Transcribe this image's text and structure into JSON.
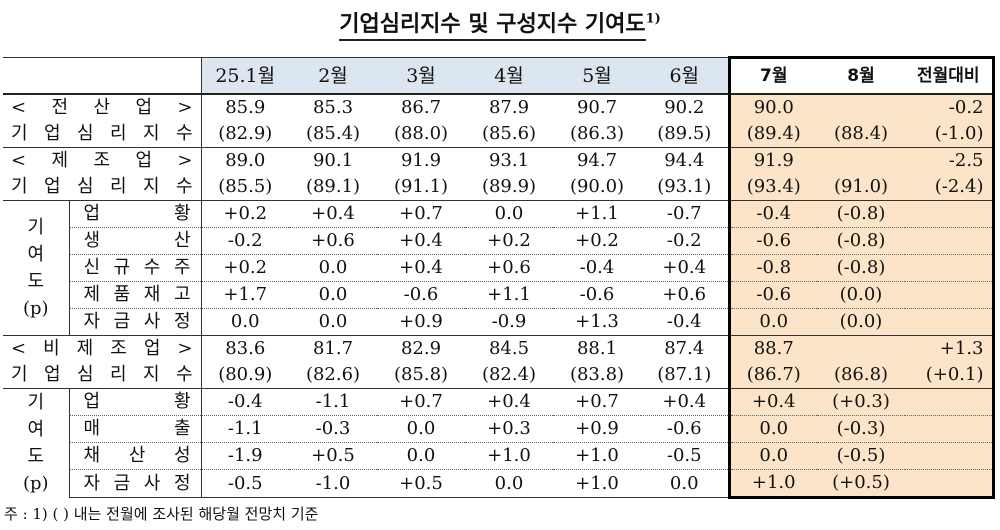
{
  "title": "기업심리지수 및 구성지수 기여도",
  "title_note": "1)",
  "table": {
    "header": [
      "25.1월",
      "2월",
      "3월",
      "4월",
      "5월",
      "6월",
      "7월",
      "8월",
      "전월대비"
    ],
    "sections": [
      {
        "label": "< 전 산 업 >",
        "sublabel": "기 업 심 리 지 수",
        "values": [
          "85.9",
          "85.3",
          "86.7",
          "87.9",
          "90.7",
          "90.2",
          "90.0",
          null,
          "-0.2"
        ],
        "forecasts": [
          "(82.9)",
          "(85.4)",
          "(88.0)",
          "(85.6)",
          "(86.3)",
          "(89.5)",
          "(89.4)",
          "(88.4)",
          "(-1.0)"
        ]
      },
      {
        "label": "< 제 조 업 >",
        "sublabel": "기 업 심 리 지 수",
        "values": [
          "89.0",
          "90.1",
          "91.9",
          "93.1",
          "94.7",
          "94.4",
          "91.9",
          null,
          "-2.5"
        ],
        "forecasts": [
          "(85.5)",
          "(89.1)",
          "(91.1)",
          "(89.9)",
          "(90.0)",
          "(93.1)",
          "(93.4)",
          "(91.0)",
          "(-2.4)"
        ],
        "contributions": {
          "label": "기 여 도 (p)",
          "rows": [
            {
              "label": "업 황",
              "cells": [
                "+0.2",
                "+0.4",
                "+0.7",
                "0.0",
                "+1.1",
                "-0.7",
                "-0.4",
                "(-0.8)",
                null
              ]
            },
            {
              "label": "생 산",
              "cells": [
                "-0.2",
                "+0.6",
                "+0.4",
                "+0.2",
                "+0.2",
                "-0.2",
                "-0.6",
                "(-0.8)",
                null
              ]
            },
            {
              "label": "신 규 수 주",
              "cells": [
                "+0.2",
                "0.0",
                "+0.4",
                "+0.6",
                "-0.4",
                "+0.4",
                "-0.8",
                "(-0.8)",
                null
              ]
            },
            {
              "label": "제 품 재 고",
              "cells": [
                "+1.7",
                "0.0",
                "-0.6",
                "+1.1",
                "-0.6",
                "+0.6",
                "-0.6",
                "(0.0)",
                null
              ]
            },
            {
              "label": "자 금 사 정",
              "cells": [
                "0.0",
                "0.0",
                "+0.9",
                "-0.9",
                "+1.3",
                "-0.4",
                "0.0",
                "(0.0)",
                null
              ]
            }
          ]
        }
      },
      {
        "label": "< 비 제 조 업 >",
        "sublabel": "기 업 심 리 지 수",
        "values": [
          "83.6",
          "81.7",
          "82.9",
          "84.5",
          "88.1",
          "87.4",
          "88.7",
          null,
          "+1.3"
        ],
        "forecasts": [
          "(80.9)",
          "(82.6)",
          "(85.8)",
          "(82.4)",
          "(83.8)",
          "(87.1)",
          "(86.7)",
          "(86.8)",
          "(+0.1)"
        ],
        "contributions": {
          "label": "기 여 도 (p)",
          "rows": [
            {
              "label": "업 황",
              "cells": [
                "-0.4",
                "-1.1",
                "+0.7",
                "+0.4",
                "+0.7",
                "+0.4",
                "+0.4",
                "(+0.3)",
                null
              ]
            },
            {
              "label": "매 출",
              "cells": [
                "-1.1",
                "-0.3",
                "0.0",
                "+0.3",
                "+0.9",
                "-0.6",
                "0.0",
                "(-0.3)",
                null
              ]
            },
            {
              "label": "채 산 성",
              "cells": [
                "-1.9",
                "+0.5",
                "0.0",
                "+1.0",
                "+1.0",
                "-0.5",
                "0.0",
                "(-0.5)",
                null
              ]
            },
            {
              "label": "자 금 사 정",
              "cells": [
                "-0.5",
                "-1.0",
                "+0.5",
                "0.0",
                "+1.0",
                "0.0",
                "+1.0",
                "(+0.5)",
                null
              ]
            }
          ]
        }
      }
    ]
  },
  "footnote": "주 : 1) (   ) 내는 전월에 조사된 해당월 전망치 기준"
}
